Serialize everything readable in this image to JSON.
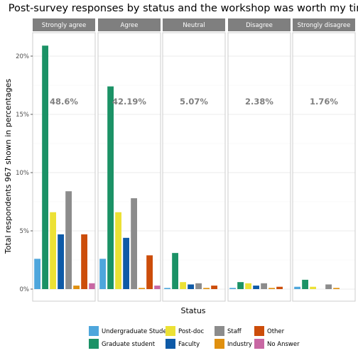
{
  "chart_data": {
    "type": "bar",
    "title": "Post-survey responses by status and the workshop was worth my time",
    "xlabel": "Status",
    "ylabel": "Total respondents 967 shown in percentages",
    "ylim": [
      0,
      22.5
    ],
    "yticks": [
      0,
      5,
      10,
      15,
      20
    ],
    "ytick_labels": [
      "0%",
      "5%",
      "10%",
      "15%",
      "20%"
    ],
    "grid": true,
    "legend_position": "bottom",
    "panels": [
      {
        "name": "Strongly agree",
        "total_label": "48.6%"
      },
      {
        "name": "Agree",
        "total_label": "42.19%"
      },
      {
        "name": "Neutral",
        "total_label": "5.07%"
      },
      {
        "name": "Disagree",
        "total_label": "2.38%"
      },
      {
        "name": "Strongly disagree",
        "total_label": "1.76%"
      }
    ],
    "series": [
      {
        "name": "Undergraduate Student",
        "color": "#4EA6DC",
        "values": [
          2.6,
          2.6,
          0.1,
          0.1,
          0.2
        ]
      },
      {
        "name": "Graduate student",
        "color": "#1B9266",
        "values": [
          20.9,
          17.4,
          3.1,
          0.6,
          0.8
        ]
      },
      {
        "name": "Post-doc",
        "color": "#ECE135",
        "values": [
          6.6,
          6.6,
          0.6,
          0.5,
          0.2
        ]
      },
      {
        "name": "Faculty",
        "color": "#0E5AA7",
        "values": [
          4.7,
          4.4,
          0.4,
          0.3,
          0.0
        ]
      },
      {
        "name": "Staff",
        "color": "#8C8C8C",
        "values": [
          8.4,
          7.8,
          0.5,
          0.5,
          0.4
        ]
      },
      {
        "name": "Industry",
        "color": "#E0900F",
        "values": [
          0.3,
          0.1,
          0.1,
          0.1,
          0.1
        ]
      },
      {
        "name": "Other",
        "color": "#CC4D0A",
        "values": [
          4.7,
          2.9,
          0.3,
          0.2,
          0.0
        ]
      },
      {
        "name": "No Answer",
        "color": "#C867A3",
        "values": [
          0.5,
          0.3,
          0.0,
          0.0,
          0.0
        ]
      }
    ]
  }
}
